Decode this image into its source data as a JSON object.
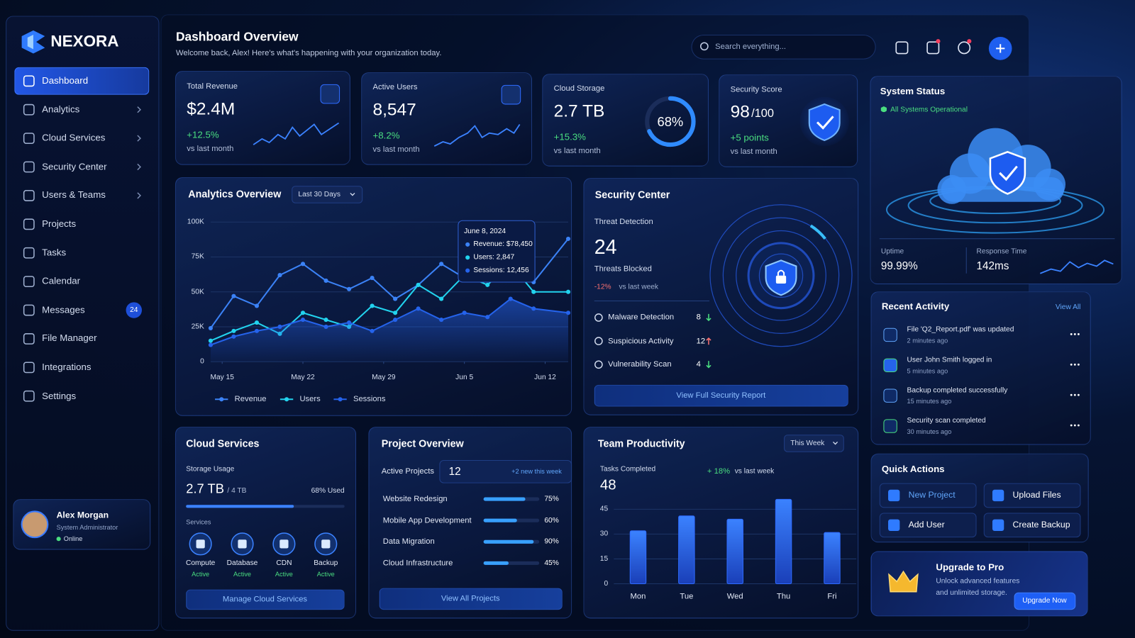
{
  "sidebar": {
    "brand": "NEXORA",
    "nav": [
      {
        "label": "Dashboard"
      },
      {
        "label": "Analytics",
        "expandable": true
      },
      {
        "label": "Cloud Services",
        "expandable": true
      },
      {
        "label": "Security Center",
        "expandable": true
      },
      {
        "label": "Users & Teams",
        "expandable": true
      },
      {
        "label": "Projects"
      },
      {
        "label": "Tasks"
      },
      {
        "label": "Calendar"
      },
      {
        "label": "Messages",
        "badge": 24
      },
      {
        "label": "File Manager"
      },
      {
        "label": "Integrations"
      },
      {
        "label": "Settings"
      }
    ],
    "user": {
      "name": "Alex Morgan",
      "role": "System Administrator",
      "status": "Online"
    }
  },
  "header": {
    "title": "Dashboard Overview",
    "subtitle": "Welcome back, Alex! Here's what's happening with your organization today.",
    "search_placeholder": "Search everything..."
  },
  "kpis": [
    {
      "label": "Total Revenue",
      "value": "$2.4M",
      "change": "+12.5%",
      "note": "vs last month"
    },
    {
      "label": "Active Users",
      "value": "8,547",
      "change": "+8.2%",
      "note": "vs last month"
    },
    {
      "label": "Cloud Storage",
      "value": "2.7 TB",
      "change": "+15.3%",
      "note": "vs last month",
      "gauge": {
        "value": 68,
        "label": "68%"
      }
    },
    {
      "label": "Security Score",
      "value": "98",
      "max": "/100",
      "change": "+5 points",
      "note": "vs last month"
    }
  ],
  "analytics": {
    "type": "line",
    "title": "Analytics Overview",
    "range": "Last 30 Days",
    "x": [
      -1,
      1,
      3,
      5,
      7,
      9,
      11,
      13,
      15,
      17,
      19,
      21,
      23,
      25,
      27,
      30
    ],
    "xlim": [
      -1,
      30
    ],
    "xticks": [
      {
        "value": 0,
        "label": "May 15"
      },
      {
        "value": 7,
        "label": "May 22"
      },
      {
        "value": 14,
        "label": "May 29"
      },
      {
        "value": 21,
        "label": "Jun 5"
      },
      {
        "value": 28,
        "label": "Jun 12"
      }
    ],
    "ylim": [
      0,
      100000
    ],
    "yticks": [
      0,
      {
        "value": 25000,
        "label": "25K"
      },
      {
        "value": 50000,
        "label": "50K"
      },
      {
        "value": 75000,
        "label": "75K"
      },
      {
        "value": 100000,
        "label": "100K"
      }
    ],
    "series": [
      {
        "name": "Revenue",
        "color": "#3b82f6",
        "values": [
          24000,
          47000,
          40000,
          62000,
          70000,
          58000,
          52000,
          60000,
          45000,
          55000,
          70000,
          60000,
          65000,
          72000,
          57000,
          88000
        ]
      },
      {
        "name": "Users",
        "color": "#22d3ee",
        "values": [
          15000,
          22000,
          28000,
          20000,
          35000,
          30000,
          25000,
          40000,
          35000,
          55000,
          45000,
          62000,
          55000,
          70000,
          50000,
          50000
        ]
      },
      {
        "name": "Sessions",
        "color": "#2563eb",
        "values": [
          12000,
          18000,
          22000,
          25000,
          30000,
          25000,
          28000,
          22000,
          30000,
          38000,
          30000,
          35000,
          32000,
          45000,
          38000,
          35000
        ],
        "area": true
      }
    ],
    "tooltip": {
      "date": "June 8, 2024",
      "lines": [
        "Revenue: $78,450",
        "Users: 2,847",
        "Sessions: 12,456"
      ]
    }
  },
  "security": {
    "title": "Security Center",
    "subtitle": "Threat Detection",
    "count": 24,
    "count_label": "Threats Blocked",
    "change": "-12%",
    "change_note": "vs last week",
    "items": [
      {
        "label": "Malware Detection",
        "count": 8,
        "trend": "down"
      },
      {
        "label": "Suspicious Activity",
        "count": 12,
        "trend": "up"
      },
      {
        "label": "Vulnerability Scan",
        "count": 4,
        "trend": "down"
      }
    ],
    "button": "View Full Security Report"
  },
  "system": {
    "title": "System Status",
    "status": "All Systems Operational",
    "uptime_label": "Uptime",
    "uptime": "99.99%",
    "response_label": "Response Time",
    "response": "142ms"
  },
  "activity": {
    "title": "Recent Activity",
    "link": "View All",
    "items": [
      {
        "text": "File 'Q2_Report.pdf' was updated",
        "time": "2 minutes ago"
      },
      {
        "text": "User John Smith logged in",
        "time": "5 minutes ago"
      },
      {
        "text": "Backup completed successfully",
        "time": "15 minutes ago"
      },
      {
        "text": "Security scan completed",
        "time": "30 minutes ago"
      }
    ]
  },
  "quick": {
    "title": "Quick Actions",
    "actions": [
      "New Project",
      "Upload Files",
      "Add User",
      "Create Backup"
    ]
  },
  "upgrade": {
    "title": "Upgrade to Pro",
    "text": "Unlock advanced features and unlimited storage.",
    "button": "Upgrade Now"
  },
  "cloud": {
    "title": "Cloud Services",
    "storage_label": "Storage Usage",
    "used": "2.7 TB",
    "total": "/ 4 TB",
    "usage": {
      "value": 68,
      "label": "68% Used"
    },
    "services_label": "Services",
    "services": [
      {
        "name": "Compute",
        "status": "Active"
      },
      {
        "name": "Database",
        "status": "Active"
      },
      {
        "name": "CDN",
        "status": "Active"
      },
      {
        "name": "Backup",
        "status": "Active"
      }
    ],
    "button": "Manage Cloud Services"
  },
  "projects": {
    "title": "Project Overview",
    "active_label": "Active Projects",
    "active": 12,
    "new": "+2 new this week",
    "items": [
      {
        "name": "Website Redesign",
        "value": 75,
        "label": "75%"
      },
      {
        "name": "Mobile App Development",
        "value": 60,
        "label": "60%"
      },
      {
        "name": "Data Migration",
        "value": 90,
        "label": "90%"
      },
      {
        "name": "Cloud Infrastructure",
        "value": 45,
        "label": "45%"
      }
    ],
    "button": "View All Projects"
  },
  "productivity": {
    "title": "Team Productivity",
    "range": "This Week",
    "tasks_label": "Tasks Completed",
    "tasks": 48,
    "change": "+ 18%",
    "change_note": "vs last week",
    "chart": {
      "type": "bar",
      "categories": [
        "Mon",
        "Tue",
        "Wed",
        "Thu",
        "Fri"
      ],
      "values": [
        32,
        41,
        39,
        51,
        31
      ],
      "ylim": [
        0,
        52
      ],
      "yticks": [
        0,
        15,
        30,
        45
      ],
      "color": "#2f6bff"
    }
  }
}
